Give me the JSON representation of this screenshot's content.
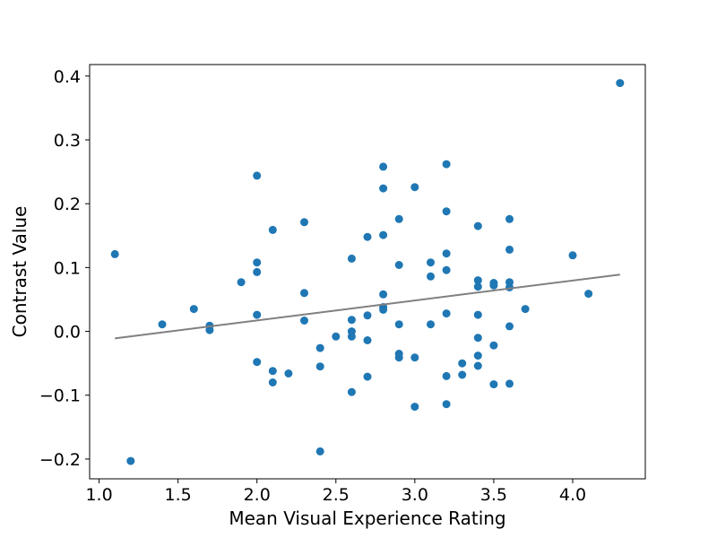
{
  "chart_data": {
    "type": "scatter",
    "title": "",
    "xlabel": "Mean Visual Experience Rating",
    "ylabel": "Contrast Value",
    "xlim": [
      0.94,
      4.46
    ],
    "ylim": [
      -0.231,
      0.418
    ],
    "xticks": [
      1.0,
      1.5,
      2.0,
      2.5,
      3.0,
      3.5,
      4.0
    ],
    "xtick_labels": [
      "1.0",
      "1.5",
      "2.0",
      "2.5",
      "3.0",
      "3.5",
      "4.0"
    ],
    "yticks": [
      -0.2,
      -0.1,
      0.0,
      0.1,
      0.2,
      0.3,
      0.4
    ],
    "ytick_labels": [
      "−0.2",
      "−0.1",
      "0.0",
      "0.1",
      "0.2",
      "0.3",
      "0.4"
    ],
    "grid": false,
    "point_color": "#1f77b4",
    "fit_line_color": "#808080",
    "points": [
      [
        1.1,
        0.121
      ],
      [
        1.2,
        -0.203
      ],
      [
        1.4,
        0.011
      ],
      [
        1.6,
        0.035
      ],
      [
        1.7,
        0.009
      ],
      [
        1.7,
        0.002
      ],
      [
        1.9,
        0.077
      ],
      [
        2.0,
        0.244
      ],
      [
        2.0,
        0.108
      ],
      [
        2.0,
        0.093
      ],
      [
        2.0,
        0.026
      ],
      [
        2.0,
        -0.048
      ],
      [
        2.1,
        0.159
      ],
      [
        2.1,
        -0.062
      ],
      [
        2.1,
        -0.08
      ],
      [
        2.2,
        -0.066
      ],
      [
        2.3,
        0.171
      ],
      [
        2.3,
        0.06
      ],
      [
        2.3,
        0.017
      ],
      [
        2.4,
        -0.026
      ],
      [
        2.4,
        -0.055
      ],
      [
        2.4,
        -0.188
      ],
      [
        2.5,
        -0.008
      ],
      [
        2.6,
        0.114
      ],
      [
        2.6,
        0.018
      ],
      [
        2.6,
        0.0
      ],
      [
        2.6,
        -0.008
      ],
      [
        2.6,
        -0.095
      ],
      [
        2.7,
        0.148
      ],
      [
        2.7,
        0.025
      ],
      [
        2.7,
        -0.014
      ],
      [
        2.7,
        -0.071
      ],
      [
        2.8,
        0.258
      ],
      [
        2.8,
        0.224
      ],
      [
        2.8,
        0.151
      ],
      [
        2.8,
        0.058
      ],
      [
        2.8,
        0.038
      ],
      [
        2.8,
        0.034
      ],
      [
        2.9,
        0.176
      ],
      [
        2.9,
        0.104
      ],
      [
        2.9,
        0.011
      ],
      [
        2.9,
        -0.035
      ],
      [
        2.9,
        -0.041
      ],
      [
        3.0,
        0.226
      ],
      [
        3.0,
        -0.041
      ],
      [
        3.0,
        -0.118
      ],
      [
        3.1,
        0.108
      ],
      [
        3.1,
        0.086
      ],
      [
        3.1,
        0.011
      ],
      [
        3.2,
        0.262
      ],
      [
        3.2,
        0.188
      ],
      [
        3.2,
        0.122
      ],
      [
        3.2,
        0.096
      ],
      [
        3.2,
        0.028
      ],
      [
        3.2,
        -0.07
      ],
      [
        3.2,
        -0.114
      ],
      [
        3.3,
        -0.05
      ],
      [
        3.3,
        -0.068
      ],
      [
        3.4,
        0.165
      ],
      [
        3.4,
        0.08
      ],
      [
        3.4,
        0.07
      ],
      [
        3.4,
        0.026
      ],
      [
        3.4,
        -0.01
      ],
      [
        3.4,
        -0.038
      ],
      [
        3.4,
        -0.054
      ],
      [
        3.5,
        0.076
      ],
      [
        3.5,
        0.072
      ],
      [
        3.5,
        -0.022
      ],
      [
        3.5,
        -0.083
      ],
      [
        3.6,
        0.176
      ],
      [
        3.6,
        0.128
      ],
      [
        3.6,
        0.077
      ],
      [
        3.6,
        0.069
      ],
      [
        3.6,
        0.008
      ],
      [
        3.6,
        -0.082
      ],
      [
        3.7,
        0.035
      ],
      [
        4.0,
        0.119
      ],
      [
        4.1,
        0.059
      ],
      [
        4.3,
        0.389
      ]
    ],
    "fit_line": {
      "x": [
        1.1,
        4.3
      ],
      "y": [
        -0.011,
        0.089
      ]
    }
  }
}
